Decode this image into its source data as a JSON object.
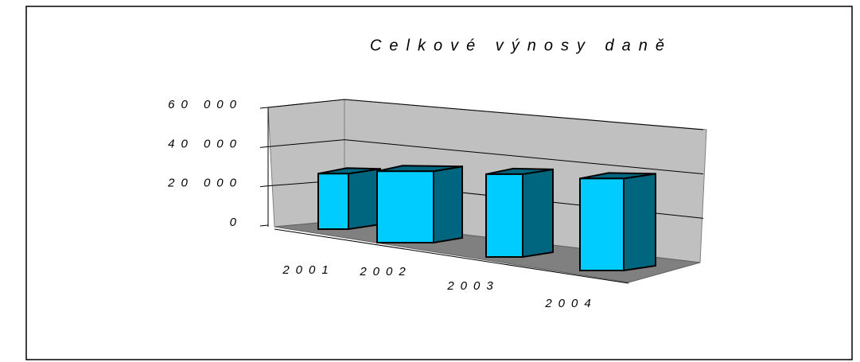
{
  "chart_data": {
    "type": "bar3d",
    "title": "Celkové výnosy daně",
    "categories": [
      "2001",
      "2002",
      "2003",
      "2004"
    ],
    "values": [
      27000,
      28500,
      28000,
      27000
    ],
    "color": "#00ccff",
    "side_color": "#006680",
    "ylim": [
      0,
      60000
    ],
    "yticks": [
      0,
      {
        "value": 20000,
        "label": "20 000"
      },
      {
        "value": 40000,
        "label": "40 000"
      },
      {
        "value": 60000,
        "label": "60 000"
      }
    ],
    "grid": true
  }
}
